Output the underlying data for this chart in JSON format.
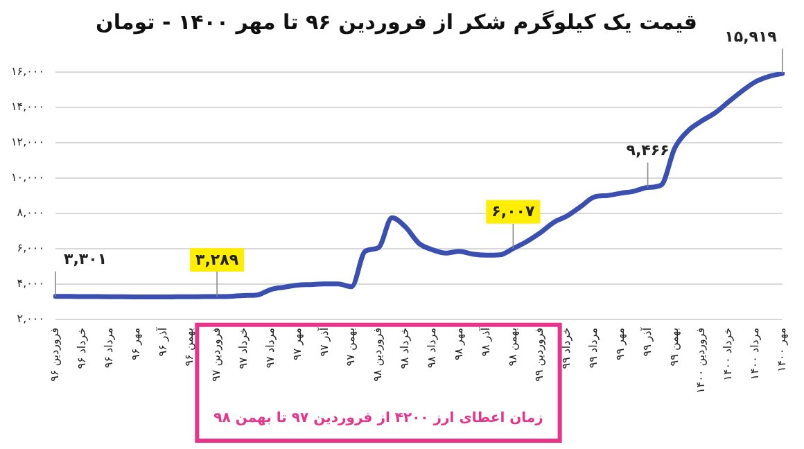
{
  "chart_data": {
    "type": "line",
    "title": "قیمت یک کیلوگرم شکر از فروردین ۹۶ تا مهر ۱۴۰۰ - تومان",
    "categories": [
      "فروردین ۹۶",
      null,
      "خرداد ۹۶",
      null,
      "مرداد ۹۶",
      null,
      "مهر ۹۶",
      null,
      "آذر ۹۶",
      null,
      "بهمن ۹۶",
      null,
      "فروردین ۹۷",
      null,
      "خرداد ۹۷",
      null,
      "مرداد ۹۷",
      null,
      "مهر ۹۷",
      null,
      "آذر ۹۷",
      null,
      "بهمن ۹۷",
      null,
      "فروردین ۹۸",
      null,
      "خرداد ۹۸",
      null,
      "مرداد ۹۸",
      null,
      "مهر ۹۸",
      null,
      "آذر ۹۸",
      null,
      "بهمن ۹۸",
      null,
      "فروردین ۹۹",
      null,
      "خرداد ۹۹",
      null,
      "مرداد ۹۹",
      null,
      "مهر ۹۹",
      null,
      "آذر ۹۹",
      null,
      "بهمن ۹۹",
      null,
      "فروردین ۱۴۰۰",
      null,
      "خرداد ۱۴۰۰",
      null,
      "مرداد ۱۴۰۰",
      null,
      "مهر ۱۴۰۰"
    ],
    "series": [
      {
        "color": "#3a4fb0",
        "values": [
          3301,
          3300,
          3290,
          3285,
          3280,
          3275,
          3270,
          3270,
          3270,
          3275,
          3280,
          3285,
          3289,
          3300,
          3350,
          3380,
          3690,
          3820,
          3940,
          3970,
          4000,
          4000,
          3850,
          5850,
          6060,
          7750,
          7230,
          6300,
          5940,
          5750,
          5850,
          5690,
          5630,
          5650,
          6007,
          6400,
          6890,
          7480,
          7850,
          8370,
          8920,
          9010,
          9140,
          9260,
          9466,
          9600,
          11690,
          12680,
          13230,
          13690,
          14310,
          14920,
          15450,
          15750,
          15919
        ],
        "value_labels": [
          "۳,۳۰۱",
          null,
          null,
          null,
          null,
          null,
          null,
          null,
          null,
          null,
          null,
          null,
          "۳,۲۸۹",
          null,
          null,
          null,
          null,
          null,
          null,
          null,
          null,
          null,
          null,
          null,
          null,
          null,
          null,
          null,
          null,
          null,
          null,
          null,
          null,
          null,
          "۶,۰۰۷",
          null,
          null,
          null,
          null,
          null,
          null,
          null,
          null,
          null,
          "۹,۴۶۶",
          null,
          null,
          null,
          null,
          null,
          null,
          null,
          null,
          null,
          "۱۵,۹۱۹"
        ]
      }
    ],
    "ylim": [
      2000,
      16000
    ],
    "yticks": [
      {
        "value": 2000,
        "label": "۲,۰۰۰"
      },
      {
        "value": 4000,
        "label": "۴,۰۰۰"
      },
      {
        "value": 6000,
        "label": "۶,۰۰۰"
      },
      {
        "value": 8000,
        "label": "۸,۰۰۰"
      },
      {
        "value": 10000,
        "label": "۱۰,۰۰۰"
      },
      {
        "value": 12000,
        "label": "۱۲,۰۰۰"
      },
      {
        "value": 14000,
        "label": "۱۴,۰۰۰"
      },
      {
        "value": 16000,
        "label": "۱۶,۰۰۰"
      }
    ],
    "annotations": [
      "زمان اعطای ارز ۴۲۰۰ از فروردین ۹۷ تا بهمن ۹۸"
    ],
    "grid": "y",
    "legend": false,
    "marker": "none",
    "line_style": "solid"
  }
}
